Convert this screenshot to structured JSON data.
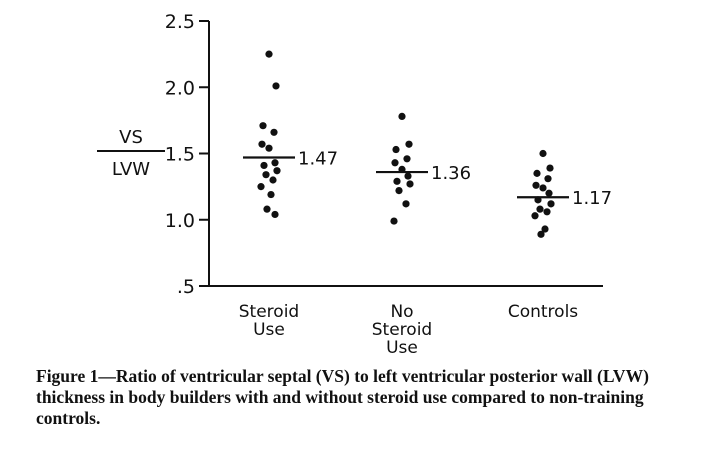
{
  "chart_data": {
    "type": "scatter",
    "ylabel_top": "VS",
    "ylabel_bottom": "LVW",
    "ylim": [
      0.5,
      2.5
    ],
    "yticks": [
      {
        "value": 2.5,
        "label": "2.5"
      },
      {
        "value": 2.0,
        "label": "2.0"
      },
      {
        "value": 1.5,
        "label": "1.5"
      },
      {
        "value": 1.0,
        "label": "1.0"
      },
      {
        "value": 0.5,
        "label": ".5"
      }
    ],
    "groups": [
      {
        "name": "steroid-use",
        "label_lines": [
          "Steroid",
          "Use"
        ],
        "mean": 1.47,
        "mean_label": "1.47",
        "points": [
          2.25,
          2.01,
          1.71,
          1.66,
          1.57,
          1.54,
          1.43,
          1.41,
          1.37,
          1.34,
          1.3,
          1.25,
          1.19,
          1.08,
          1.04
        ]
      },
      {
        "name": "no-steroid-use",
        "label_lines": [
          "No",
          "Steroid",
          "Use"
        ],
        "mean": 1.36,
        "mean_label": "1.36",
        "points": [
          1.78,
          1.57,
          1.53,
          1.46,
          1.43,
          1.38,
          1.33,
          1.29,
          1.27,
          1.22,
          1.12,
          0.99
        ]
      },
      {
        "name": "controls",
        "label_lines": [
          "Controls"
        ],
        "mean": 1.17,
        "mean_label": "1.17",
        "points": [
          1.5,
          1.39,
          1.35,
          1.31,
          1.26,
          1.24,
          1.2,
          1.15,
          1.12,
          1.08,
          1.06,
          1.03,
          0.93,
          0.89
        ]
      }
    ]
  },
  "caption": "Figure 1—Ratio of ventricular septal (VS) to left ventricular posterior wall (LVW) thickness in body builders with and without steroid use compared to non-training controls."
}
